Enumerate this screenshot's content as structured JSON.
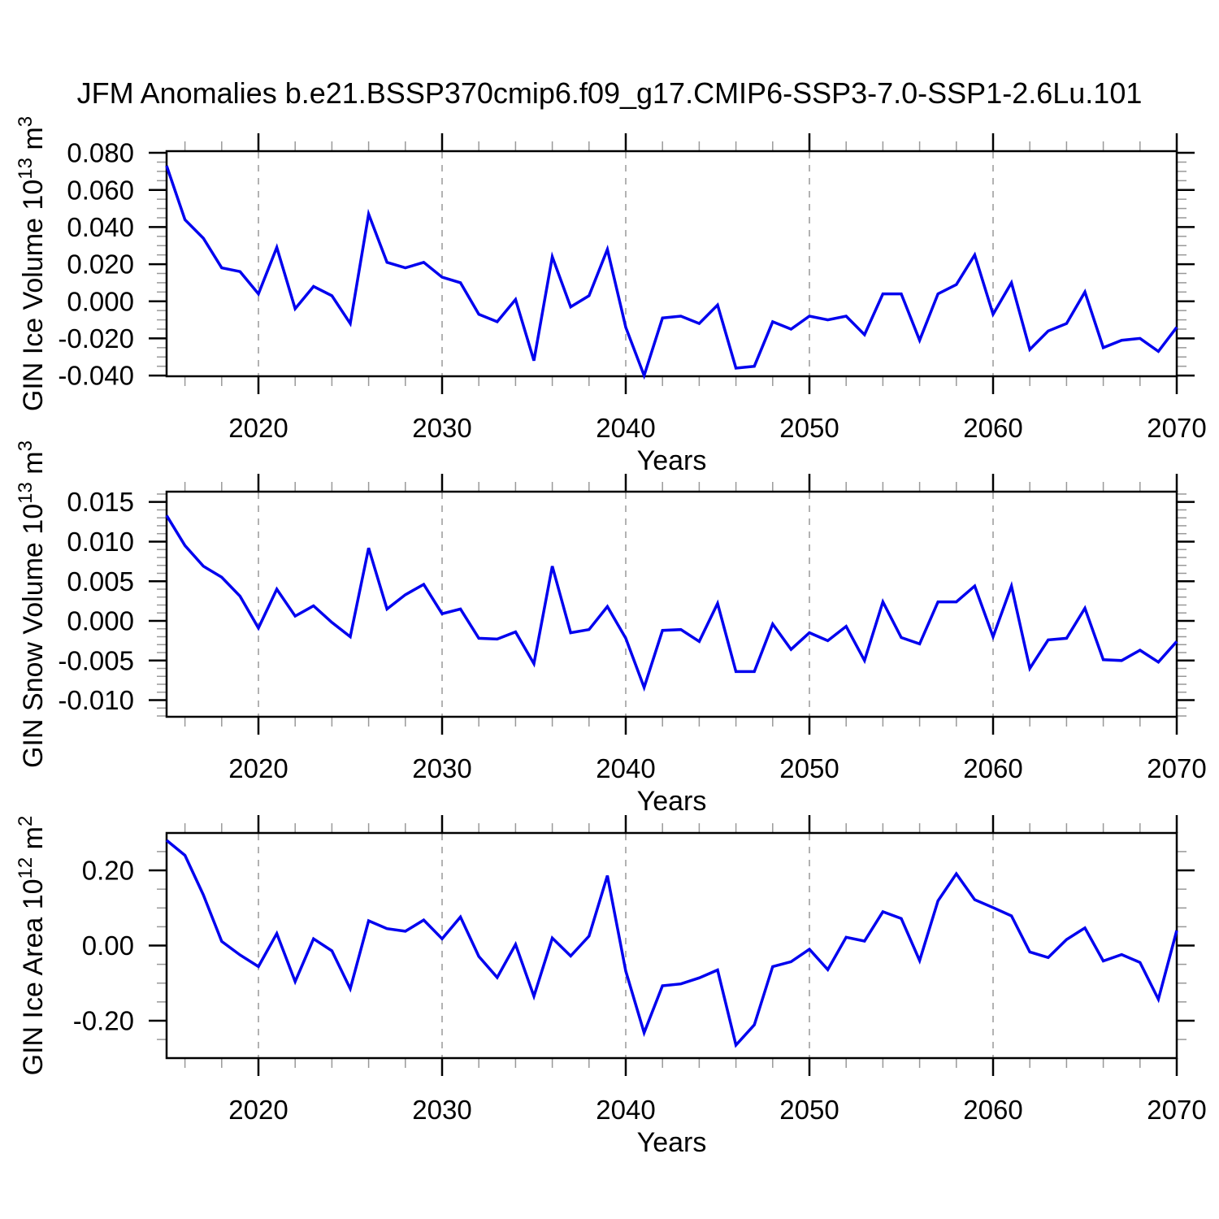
{
  "title": "JFM Anomalies b.e21.BSSP370cmip6.f09_g17.CMIP6-SSP3-7.0-SSP1-2.6Lu.101",
  "style": {
    "line_color": "#0000ee",
    "grid_color": "#999999",
    "minor_tick_color": "#999999",
    "axis_color": "#000000"
  },
  "years": [
    2015,
    2016,
    2017,
    2018,
    2019,
    2020,
    2021,
    2022,
    2023,
    2024,
    2025,
    2026,
    2027,
    2028,
    2029,
    2030,
    2031,
    2032,
    2033,
    2034,
    2035,
    2036,
    2037,
    2038,
    2039,
    2040,
    2041,
    2042,
    2043,
    2044,
    2045,
    2046,
    2047,
    2048,
    2049,
    2050,
    2051,
    2052,
    2053,
    2054,
    2055,
    2056,
    2057,
    2058,
    2059,
    2060,
    2061,
    2062,
    2063,
    2064,
    2065,
    2066,
    2067,
    2068,
    2069,
    2070
  ],
  "chart_data": [
    {
      "type": "line",
      "name": "ice-volume",
      "ylabel": "GIN Ice Volume 10^13 m^3",
      "ylabel_segments": [
        {
          "text": "GIN Ice Volume 10",
          "sup": false
        },
        {
          "text": "13",
          "sup": true
        },
        {
          "text": " m",
          "sup": false
        },
        {
          "text": "3",
          "sup": true
        }
      ],
      "xlabel": "Years",
      "x_range": {
        "start": 2015,
        "end": 2070,
        "step": 1
      },
      "xticks": [
        2020,
        2030,
        2040,
        2050,
        2060,
        2070
      ],
      "x_minor_step": 2,
      "x_gridlines": [
        2020,
        2030,
        2040,
        2050,
        2060
      ],
      "ylim": [
        -0.0404,
        0.0809
      ],
      "yticks": [
        0.08,
        0.06,
        0.04,
        0.02,
        0.0,
        -0.02,
        -0.04
      ],
      "ytick_labels": [
        "0.080",
        "0.060",
        "0.040",
        "0.020",
        "0.000",
        "-0.020",
        "-0.040"
      ],
      "y_minor_step": 0.005,
      "values": [
        0.073,
        0.044,
        0.034,
        0.018,
        0.016,
        0.004,
        0.029,
        -0.004,
        0.008,
        0.003,
        -0.012,
        0.047,
        0.021,
        0.018,
        0.021,
        0.013,
        0.01,
        -0.007,
        -0.011,
        0.001,
        -0.032,
        0.024,
        -0.003,
        0.003,
        0.028,
        -0.014,
        -0.04,
        -0.009,
        -0.008,
        -0.012,
        -0.002,
        -0.036,
        -0.035,
        -0.011,
        -0.015,
        -0.008,
        -0.01,
        -0.008,
        -0.018,
        0.004,
        0.004,
        -0.021,
        0.004,
        0.009,
        0.025,
        -0.007,
        0.01,
        -0.026,
        -0.016,
        -0.012,
        0.005,
        -0.025,
        -0.021,
        -0.02,
        -0.027,
        -0.014
      ]
    },
    {
      "type": "line",
      "name": "snow-volume",
      "ylabel": "GIN Snow Volume 10^13 m^3",
      "ylabel_segments": [
        {
          "text": "GIN Snow Volume 10",
          "sup": false
        },
        {
          "text": "13",
          "sup": true
        },
        {
          "text": " m",
          "sup": false
        },
        {
          "text": "3",
          "sup": true
        }
      ],
      "xlabel": "Years",
      "x_range": {
        "start": 2015,
        "end": 2070,
        "step": 1
      },
      "xticks": [
        2020,
        2030,
        2040,
        2050,
        2060,
        2070
      ],
      "x_minor_step": 2,
      "x_gridlines": [
        2020,
        2030,
        2040,
        2050,
        2060
      ],
      "ylim": [
        -0.0121,
        0.0163
      ],
      "yticks": [
        0.015,
        0.01,
        0.005,
        0.0,
        -0.005,
        -0.01
      ],
      "ytick_labels": [
        "0.015",
        "0.010",
        "0.005",
        "0.000",
        "-0.005",
        "-0.010"
      ],
      "y_minor_step": 0.001,
      "values": [
        0.0133,
        0.0095,
        0.0069,
        0.0055,
        0.0031,
        -0.0009,
        0.004,
        0.0006,
        0.0019,
        -0.0002,
        -0.002,
        0.0092,
        0.0015,
        0.0033,
        0.0046,
        0.0009,
        0.0015,
        -0.0022,
        -0.0023,
        -0.0014,
        -0.0054,
        0.0069,
        -0.0015,
        -0.0011,
        0.0018,
        -0.0022,
        -0.0084,
        -0.0012,
        -0.0011,
        -0.0026,
        0.0022,
        -0.0064,
        -0.0064,
        -0.0004,
        -0.0036,
        -0.0015,
        -0.0025,
        -0.0007,
        -0.005,
        0.0024,
        -0.0021,
        -0.0029,
        0.0024,
        0.0024,
        0.0044,
        -0.002,
        0.0044,
        -0.006,
        -0.0024,
        -0.0022,
        0.0016,
        -0.0049,
        -0.005,
        -0.0037,
        -0.0052,
        -0.0026
      ]
    },
    {
      "type": "line",
      "name": "ice-area",
      "ylabel": "GIN Ice Area 10^12 m^2",
      "ylabel_segments": [
        {
          "text": "GIN Ice Area 10",
          "sup": false
        },
        {
          "text": "12",
          "sup": true
        },
        {
          "text": " m",
          "sup": false
        },
        {
          "text": "2",
          "sup": true
        }
      ],
      "xlabel": "Years",
      "x_range": {
        "start": 2015,
        "end": 2070,
        "step": 1
      },
      "xticks": [
        2020,
        2030,
        2040,
        2050,
        2060,
        2070
      ],
      "x_minor_step": 2,
      "x_gridlines": [
        2020,
        2030,
        2040,
        2050,
        2060
      ],
      "ylim": [
        -0.2995,
        0.2995
      ],
      "yticks": [
        0.2,
        0.0,
        -0.2
      ],
      "ytick_labels": [
        "0.20",
        "0.00",
        "-0.20"
      ],
      "y_minor_step": 0.05,
      "values": [
        0.28,
        0.24,
        0.135,
        0.011,
        -0.025,
        -0.056,
        0.032,
        -0.096,
        0.018,
        -0.014,
        -0.115,
        0.066,
        0.045,
        0.038,
        0.068,
        0.018,
        0.076,
        -0.029,
        -0.085,
        0.003,
        -0.135,
        0.02,
        -0.028,
        0.025,
        0.186,
        -0.068,
        -0.232,
        -0.107,
        -0.102,
        -0.086,
        -0.065,
        -0.265,
        -0.211,
        -0.056,
        -0.043,
        -0.01,
        -0.064,
        0.022,
        0.012,
        0.09,
        0.072,
        -0.04,
        0.119,
        0.191,
        0.122,
        0.101,
        0.079,
        -0.017,
        -0.032,
        0.016,
        0.047,
        -0.041,
        -0.024,
        -0.045,
        -0.143,
        0.04
      ]
    }
  ]
}
